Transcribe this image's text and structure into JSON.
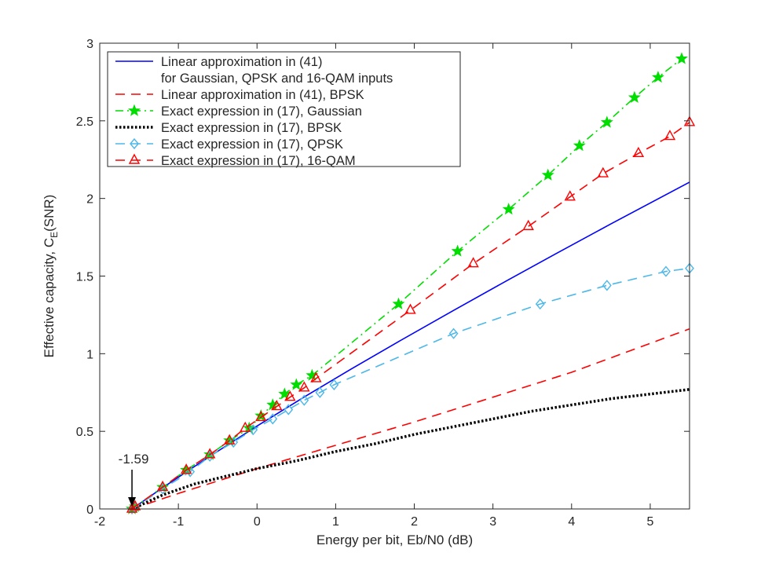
{
  "chart_data": {
    "type": "line",
    "xlabel": "Energy per bit, Eb/N0 (dB)",
    "ylabel_main": "Effective capacity, C",
    "ylabel_sub": "E",
    "ylabel_tail": "(SNR)",
    "xlim": [
      -2,
      5.5
    ],
    "ylim": [
      0,
      3
    ],
    "xticks": [
      {
        "value": -2,
        "label": "-2"
      },
      {
        "value": -1,
        "label": "-1"
      },
      {
        "value": 0,
        "label": "0"
      },
      {
        "value": 1,
        "label": "1"
      },
      {
        "value": 2,
        "label": "2"
      },
      {
        "value": 3,
        "label": "3"
      },
      {
        "value": 4,
        "label": "4"
      },
      {
        "value": 5,
        "label": "5"
      }
    ],
    "yticks": [
      {
        "value": 0,
        "label": "0"
      },
      {
        "value": 0.5,
        "label": "0.5"
      },
      {
        "value": 1,
        "label": "1"
      },
      {
        "value": 1.5,
        "label": "1.5"
      },
      {
        "value": 2,
        "label": "2"
      },
      {
        "value": 2.5,
        "label": "2.5"
      },
      {
        "value": 3,
        "label": "3"
      }
    ],
    "grid": false,
    "legend_position": "top-left",
    "annotation": {
      "text": "-1.59",
      "x": -1.59,
      "y": 0
    },
    "series": [
      {
        "name": "Linear approximation in (41)",
        "name_line2": "for Gaussian, QPSK and 16-QAM inputs",
        "color": "#0000ff",
        "dash": "solid",
        "marker": "none",
        "x": [
          -1.59,
          -1.2,
          -0.6,
          0,
          0.6,
          1.2,
          1.8,
          2.5,
          3.2,
          3.8,
          4.5,
          5.5
        ],
        "y": [
          0,
          0.137,
          0.339,
          0.534,
          0.721,
          0.902,
          1.078,
          1.279,
          1.477,
          1.644,
          1.836,
          2.105
        ]
      },
      {
        "name": "Linear approximation in (41), BPSK",
        "color": "#ff0000",
        "dash": "dashed",
        "marker": "none",
        "x": [
          -1.59,
          -1,
          0,
          1,
          2,
          3,
          4,
          5.5
        ],
        "y": [
          0,
          0.1,
          0.26,
          0.41,
          0.56,
          0.72,
          0.88,
          1.16
        ]
      },
      {
        "name": "Exact expression in (17), Gaussian",
        "color": "#00dd00",
        "dash": "dashdot",
        "marker": "star",
        "x": [
          -1.59,
          -1.55,
          -1.2,
          -0.9,
          -0.6,
          -0.35,
          -0.1,
          0.05,
          0.2,
          0.35,
          0.5,
          0.7,
          1.8,
          2.55,
          3.2,
          3.7,
          4.1,
          4.45,
          4.8,
          5.1,
          5.4
        ],
        "y": [
          0,
          0.015,
          0.14,
          0.25,
          0.35,
          0.44,
          0.52,
          0.6,
          0.67,
          0.74,
          0.8,
          0.86,
          1.32,
          1.66,
          1.93,
          2.15,
          2.34,
          2.49,
          2.65,
          2.78,
          2.9
        ]
      },
      {
        "name": "Exact expression in (17), BPSK",
        "color": "#000000",
        "dash": "dotted",
        "marker": "none",
        "x": [
          -1.59,
          -1.2,
          -0.8,
          -0.4,
          0,
          0.5,
          1,
          1.5,
          2,
          2.5,
          3,
          3.5,
          4,
          4.5,
          5,
          5.5
        ],
        "y": [
          0,
          0.09,
          0.16,
          0.21,
          0.26,
          0.31,
          0.37,
          0.42,
          0.48,
          0.53,
          0.58,
          0.63,
          0.67,
          0.71,
          0.74,
          0.77
        ]
      },
      {
        "name": "Exact expression in (17), QPSK",
        "color": "#4db8e8",
        "dash": "dashed",
        "marker": "diamond",
        "x": [
          -1.59,
          -1.55,
          -1.2,
          -0.85,
          -0.6,
          -0.3,
          -0.05,
          0.2,
          0.4,
          0.6,
          0.8,
          0.98,
          2.5,
          3.6,
          4.45,
          5.2,
          5.5
        ],
        "y": [
          0,
          0.01,
          0.13,
          0.24,
          0.34,
          0.43,
          0.51,
          0.58,
          0.64,
          0.7,
          0.75,
          0.8,
          1.13,
          1.32,
          1.44,
          1.53,
          1.55
        ]
      },
      {
        "name": "Exact expression in (17), 16-QAM",
        "color": "#ff0000",
        "dash": "dashed",
        "marker": "triangle",
        "x": [
          -1.59,
          -1.55,
          -1.2,
          -0.9,
          -0.6,
          -0.35,
          -0.15,
          0.05,
          0.25,
          0.42,
          0.6,
          0.75,
          1.95,
          2.75,
          3.45,
          3.98,
          4.4,
          4.85,
          5.25,
          5.5
        ],
        "y": [
          0,
          0.015,
          0.14,
          0.25,
          0.35,
          0.44,
          0.52,
          0.59,
          0.66,
          0.72,
          0.78,
          0.84,
          1.28,
          1.58,
          1.82,
          2.01,
          2.16,
          2.29,
          2.4,
          2.49
        ]
      }
    ]
  }
}
